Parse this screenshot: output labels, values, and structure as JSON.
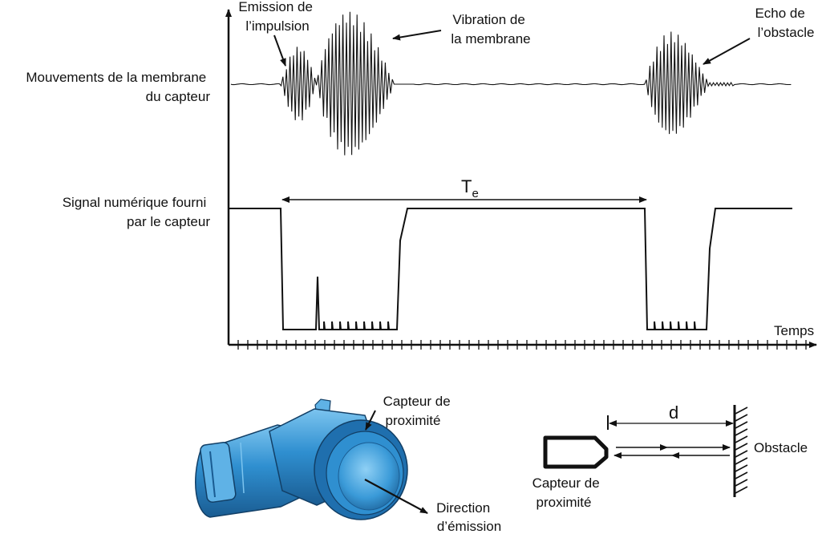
{
  "chart": {
    "labels": {
      "membrane_row_line1": "Mouvements de la membrane",
      "membrane_row_line2": "du capteur",
      "signal_row_line1": "Signal numérique fourni",
      "signal_row_line2": "par le capteur",
      "time_axis": "Temps",
      "emission_line1": "Emission de",
      "emission_line2": "l’impulsion",
      "vibration_line1": "Vibration de",
      "vibration_line2": "la membrane",
      "echo_line1": "Echo de",
      "echo_line2": "l’obstacle",
      "period_main": "T",
      "period_sub": "e"
    }
  },
  "sensor_photo": {
    "label_line1": "Capteur de",
    "label_line2": "proximité",
    "direction_line1": "Direction",
    "direction_line2": "d’émission",
    "colors": {
      "body": "#2f8fd0",
      "dark": "#1a5c92",
      "light": "#7cc4ef"
    }
  },
  "distance_schematic": {
    "distance_label": "d",
    "obstacle_label": "Obstacle",
    "sensor_line1": "Capteur de",
    "sensor_line2": "proximité"
  }
}
